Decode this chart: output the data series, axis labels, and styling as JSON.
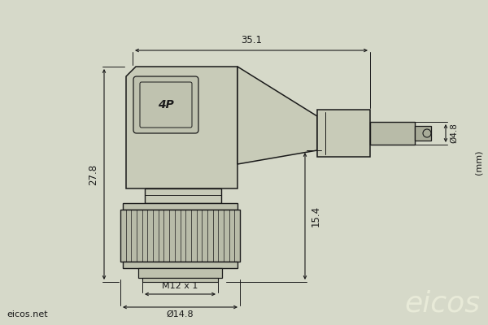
{
  "bg_color": "#d6d9c9",
  "line_color": "#1a1a1a",
  "text_color": "#1a1a1a",
  "dim_35_1": "35.1",
  "dim_27_8": "27.8",
  "dim_15_4": "15.4",
  "dim_4_8": "Ø4.8",
  "dim_m12": "M12 x 1",
  "dim_14_8": "Ø14.8",
  "unit_label": "(mm)",
  "brand_text": "eicos",
  "website_text": "eicos.net",
  "figsize": [
    6.0,
    4.0
  ],
  "dpi": 100,
  "connector_fill": "#c8cbb8",
  "nut_fill": "#bec1ae",
  "knurl_fill": "#b8bba8"
}
